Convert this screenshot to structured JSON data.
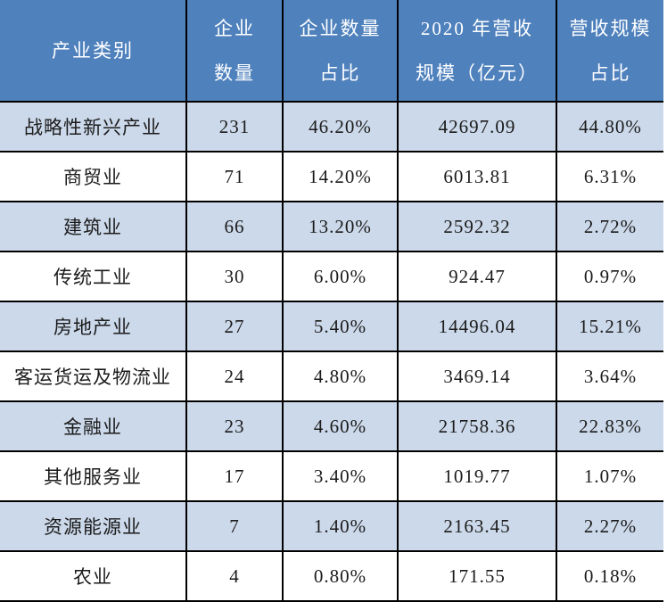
{
  "chart_data": {
    "type": "table",
    "title": "",
    "columns": [
      {
        "id": "industry-category",
        "label": "产业类别",
        "lines": [
          "产业类别"
        ]
      },
      {
        "id": "enterprise-count",
        "label": "企业数量",
        "lines": [
          "企业",
          "数量"
        ]
      },
      {
        "id": "enterprise-count-share",
        "label": "企业数量占比",
        "lines": [
          "企业数量",
          "占比"
        ]
      },
      {
        "id": "revenue-2020",
        "label": "2020年营收规模（亿元）",
        "lines": [
          "2020 年营收",
          "规模（亿元）"
        ]
      },
      {
        "id": "revenue-share",
        "label": "营收规模占比",
        "lines": [
          "营收规模",
          "占比"
        ]
      }
    ],
    "rows": [
      [
        "战略性新兴产业",
        "231",
        "46.20%",
        "42697.09",
        "44.80%"
      ],
      [
        "商贸业",
        "71",
        "14.20%",
        "6013.81",
        "6.31%"
      ],
      [
        "建筑业",
        "66",
        "13.20%",
        "2592.32",
        "2.72%"
      ],
      [
        "传统工业",
        "30",
        "6.00%",
        "924.47",
        "0.97%"
      ],
      [
        "房地产业",
        "27",
        "5.40%",
        "14496.04",
        "15.21%"
      ],
      [
        "客运货运及物流业",
        "24",
        "4.80%",
        "3469.14",
        "3.64%"
      ],
      [
        "金融业",
        "23",
        "4.60%",
        "21758.36",
        "22.83%"
      ],
      [
        "其他服务业",
        "17",
        "3.40%",
        "1019.77",
        "1.07%"
      ],
      [
        "资源能源业",
        "7",
        "1.40%",
        "2163.45",
        "2.27%"
      ],
      [
        "农业",
        "4",
        "0.80%",
        "171.55",
        "0.18%"
      ]
    ]
  },
  "colors": {
    "header_bg": "#4f81bd",
    "header_text": "#ffffff",
    "row_alt_bg": "#ccd9ea",
    "row_bg": "#ffffff",
    "border": "#000000",
    "body_text": "#1b1b1b"
  }
}
